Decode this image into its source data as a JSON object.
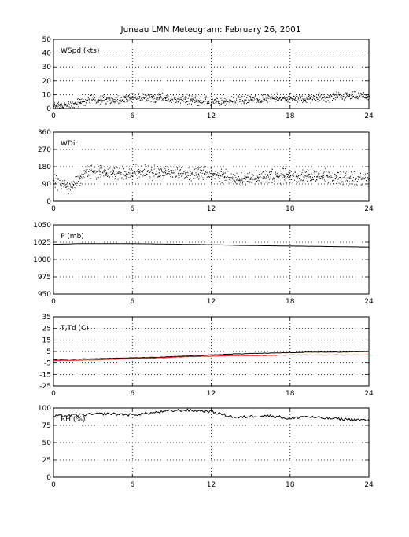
{
  "title": "Juneau LMN Meteogram:  February 26, 2001",
  "chart_data": [
    {
      "id": "wspd",
      "type": "scatter",
      "label": "WSpd (kts)",
      "xlim": [
        0,
        24
      ],
      "ylim": [
        0,
        50
      ],
      "xticks": [
        0,
        6,
        12,
        18,
        24
      ],
      "yticks": [
        0,
        10,
        20,
        30,
        40,
        50
      ],
      "series": [
        {
          "color": "#000000",
          "x": [
            0,
            0.5,
            1,
            1.5,
            2,
            2.5,
            3,
            3.5,
            4,
            4.5,
            5,
            5.5,
            6,
            6.5,
            7,
            7.5,
            8,
            8.5,
            9,
            9.5,
            10,
            10.5,
            11,
            11.5,
            12,
            12.5,
            13,
            13.5,
            14,
            14.5,
            15,
            15.5,
            16,
            16.5,
            17,
            17.5,
            18,
            18.5,
            19,
            19.5,
            20,
            20.5,
            21,
            21.5,
            22,
            22.5,
            23,
            23.5,
            24
          ],
          "y": [
            2,
            2,
            2.5,
            3,
            4,
            6,
            7,
            6.5,
            7,
            6,
            6,
            7,
            8,
            9,
            9,
            8,
            8,
            7.5,
            7,
            7,
            7,
            6.5,
            6,
            5.5,
            5,
            5,
            5,
            5.5,
            6,
            6.5,
            7,
            7,
            7,
            7.5,
            8,
            7.5,
            8,
            7,
            7,
            7.5,
            8,
            8,
            8,
            8.5,
            9,
            9.5,
            9,
            9,
            9
          ]
        }
      ]
    },
    {
      "id": "wdir",
      "type": "scatter",
      "label": "WDir",
      "xlim": [
        0,
        24
      ],
      "ylim": [
        0,
        360
      ],
      "xticks": [
        0,
        6,
        12,
        18,
        24
      ],
      "yticks": [
        0,
        90,
        180,
        270,
        360
      ],
      "series": [
        {
          "color": "#000000",
          "x": [
            0,
            0.5,
            1,
            1.5,
            2,
            2.5,
            3,
            3.5,
            4,
            4.5,
            5,
            5.5,
            6,
            6.5,
            7,
            7.5,
            8,
            8.5,
            9,
            9.5,
            10,
            10.5,
            11,
            11.5,
            12,
            12.5,
            13,
            13.5,
            14,
            14.5,
            15,
            15.5,
            16,
            16.5,
            17,
            17.5,
            18,
            18.5,
            19,
            19.5,
            20,
            20.5,
            21,
            21.5,
            22,
            22.5,
            23,
            23.5,
            24
          ],
          "y": [
            110,
            90,
            80,
            90,
            120,
            155,
            160,
            155,
            150,
            150,
            150,
            145,
            150,
            155,
            155,
            150,
            150,
            150,
            150,
            150,
            150,
            145,
            145,
            145,
            140,
            135,
            130,
            125,
            125,
            120,
            125,
            125,
            130,
            130,
            130,
            135,
            135,
            130,
            130,
            130,
            130,
            135,
            130,
            125,
            125,
            120,
            120,
            125,
            120
          ]
        }
      ]
    },
    {
      "id": "pres",
      "type": "line",
      "label": "P (mb)",
      "xlim": [
        0,
        24
      ],
      "ylim": [
        950,
        1050
      ],
      "xticks": [
        0,
        6,
        12,
        18,
        24
      ],
      "yticks": [
        950,
        975,
        1000,
        1025,
        1050
      ],
      "series": [
        {
          "color": "#000000",
          "x": [
            0,
            2,
            4,
            6,
            8,
            10,
            12,
            14,
            16,
            18,
            20,
            22,
            24
          ],
          "y": [
            1022,
            1023,
            1023,
            1023,
            1022.5,
            1022,
            1021.5,
            1020.5,
            1020,
            1019.5,
            1019,
            1018.5,
            1018
          ]
        }
      ]
    },
    {
      "id": "temp",
      "type": "line",
      "label": "T,Td (C)",
      "xlim": [
        0,
        24
      ],
      "ylim": [
        -25,
        35
      ],
      "xticks": [
        0,
        6,
        12,
        18,
        24
      ],
      "yticks": [
        -25,
        -15,
        -5,
        5,
        15,
        25,
        35
      ],
      "series": [
        {
          "color": "#000000",
          "x": [
            0,
            2,
            4,
            6,
            8,
            10,
            12,
            14,
            16,
            18,
            20,
            22,
            24
          ],
          "y": [
            -2,
            -1.5,
            -1,
            -0.5,
            0,
            1,
            2,
            3,
            3.5,
            4,
            4.5,
            4.5,
            5
          ]
        },
        {
          "color": "#ff0000",
          "x": [
            0,
            2,
            4,
            6,
            8,
            10,
            12,
            14,
            16,
            18,
            20,
            22,
            24
          ],
          "y": [
            -3,
            -2.5,
            -2,
            -1,
            -0.5,
            0.5,
            1,
            1.5,
            1.5,
            2,
            2,
            2,
            2
          ]
        }
      ]
    },
    {
      "id": "rh",
      "type": "line",
      "label": "RH (%)",
      "xlim": [
        0,
        24
      ],
      "ylim": [
        0,
        100
      ],
      "xticks": [
        0,
        6,
        12,
        18,
        24
      ],
      "yticks": [
        0,
        25,
        50,
        75,
        100
      ],
      "series": [
        {
          "color": "#000000",
          "x": [
            0,
            1,
            2,
            3,
            4,
            5,
            6,
            7,
            8,
            9,
            10,
            11,
            12,
            13,
            14,
            15,
            16,
            17,
            18,
            19,
            20,
            21,
            22,
            23,
            24
          ],
          "y": [
            88,
            89,
            90,
            91,
            92,
            91,
            90,
            92,
            94,
            96,
            97,
            96,
            95,
            90,
            86,
            88,
            89,
            88,
            84,
            88,
            86,
            85,
            84,
            83,
            82
          ]
        }
      ]
    }
  ]
}
